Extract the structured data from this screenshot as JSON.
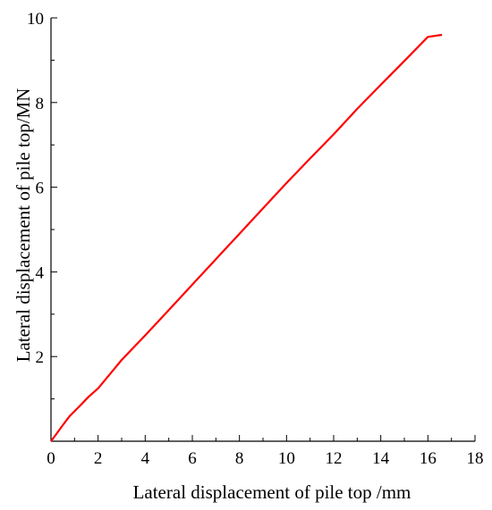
{
  "chart_data": {
    "type": "line",
    "title": "",
    "xlabel": "Lateral displacement of pile top /mm",
    "ylabel": "Lateral displacement of pile top/MN",
    "xlim": [
      0,
      18
    ],
    "ylim": [
      0,
      10
    ],
    "xticks": [
      0,
      2,
      4,
      6,
      8,
      10,
      12,
      14,
      16,
      18
    ],
    "yticks": [
      2,
      4,
      6,
      8,
      10
    ],
    "grid": false,
    "legend": "none",
    "series": [
      {
        "color": "#ff0000",
        "x": [
          0,
          0.2,
          0.5,
          0.8,
          1.2,
          1.6,
          2.0,
          3.0,
          4.0,
          5.0,
          6.0,
          7.0,
          8.0,
          9.0,
          10.0,
          11.0,
          12.0,
          13.0,
          14.0,
          15.0,
          16.0,
          16.6
        ],
        "y": [
          0,
          0.15,
          0.38,
          0.6,
          0.82,
          1.05,
          1.25,
          1.92,
          2.5,
          3.1,
          3.7,
          4.3,
          4.9,
          5.5,
          6.1,
          6.68,
          7.25,
          7.85,
          8.42,
          8.98,
          9.55,
          9.6
        ]
      }
    ]
  }
}
